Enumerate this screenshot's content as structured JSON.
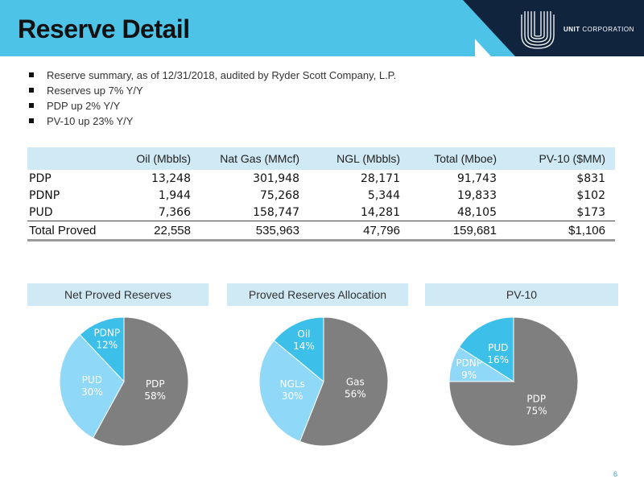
{
  "header": {
    "title": "Reserve Detail",
    "logo": {
      "name": "UNIT",
      "suffix": "CORPORATION"
    },
    "colors": {
      "bar": "#4dc3e8",
      "navy": "#10243e"
    }
  },
  "bullets": [
    "Reserve summary, as of 12/31/2018, audited by Ryder Scott Company, L.P.",
    "Reserves up 7% Y/Y",
    "PDP up 2% Y/Y",
    "PV-10 up 23% Y/Y"
  ],
  "table": {
    "columns": [
      "",
      "Oil (Mbbls)",
      "Nat Gas (MMcf)",
      "NGL (Mbbls)",
      "Total (Mboe)",
      "PV-10 ($MM)"
    ],
    "rows": [
      [
        "PDP",
        "13,248",
        "301,948",
        "28,171",
        "91,743",
        "$831"
      ],
      [
        "PDNP",
        "1,944",
        "75,268",
        "5,344",
        "19,833",
        "$102"
      ],
      [
        "PUD",
        "7,366",
        "158,747",
        "14,281",
        "48,105",
        "$173"
      ]
    ],
    "total": [
      "Total Proved",
      "22,558",
      "535,963",
      "47,796",
      "159,681",
      "$1,106"
    ]
  },
  "chart_data": [
    {
      "type": "pie",
      "title": "Net Proved Reserves",
      "slices": [
        {
          "name": "PDP",
          "value": 58,
          "label": "58%",
          "color": "#7f7f7f"
        },
        {
          "name": "PUD",
          "value": 30,
          "label": "30%",
          "color": "#8fd8f8"
        },
        {
          "name": "PDNP",
          "value": 12,
          "label": "12%",
          "color": "#3cbfe8"
        }
      ]
    },
    {
      "type": "pie",
      "title": "Proved Reserves Allocation",
      "slices": [
        {
          "name": "Gas",
          "value": 56,
          "label": "56%",
          "color": "#7f7f7f"
        },
        {
          "name": "NGLs",
          "value": 30,
          "label": "30%",
          "color": "#8fd8f8"
        },
        {
          "name": "Oil",
          "value": 14,
          "label": "14%",
          "color": "#3cbfe8"
        }
      ]
    },
    {
      "type": "pie",
      "title": "PV-10",
      "slices": [
        {
          "name": "PDP",
          "value": 75,
          "label": "75%",
          "color": "#7f7f7f"
        },
        {
          "name": "PDNP",
          "value": 9,
          "label": "9%",
          "color": "#8fd8f8"
        },
        {
          "name": "PUD",
          "value": 16,
          "label": "16%",
          "color": "#3cbfe8"
        }
      ]
    }
  ],
  "page_number": "6"
}
